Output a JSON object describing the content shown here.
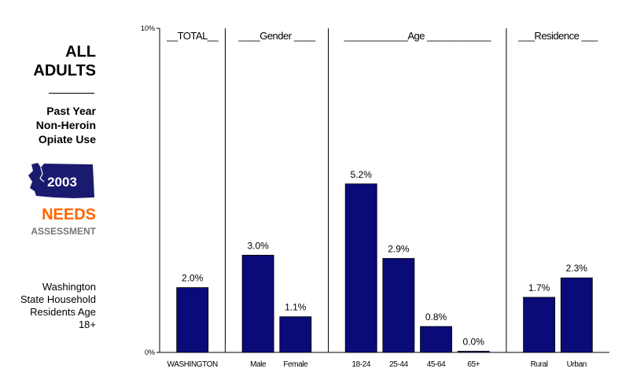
{
  "sidebar": {
    "heading_line1": "ALL",
    "heading_line2": "ADULTS",
    "subtitle_line1": "Past Year",
    "subtitle_line2": "Non-Heroin",
    "subtitle_line3": "Opiate Use",
    "badge_year": "2003",
    "needs": "NEEDS",
    "assessment": "ASSESSMENT",
    "description_line1": "Washington",
    "description_line2": "State Household",
    "description_line3": "Residents Age",
    "description_line4": "18+",
    "map_color": "#1a1a6e",
    "needs_color": "#ff6600",
    "assessment_color": "#777777"
  },
  "chart_data": {
    "type": "bar",
    "ylim": [
      0,
      10
    ],
    "y_ticks": [
      {
        "value": 0,
        "label": "0%"
      },
      {
        "value": 10,
        "label": "10%"
      }
    ],
    "bar_color": "#0a0a78",
    "groups": [
      {
        "header": "__TOTAL__",
        "categories": [
          "WASHINGTON"
        ],
        "values": [
          2.0
        ],
        "labels": [
          "2.0%"
        ]
      },
      {
        "header": "____Gender ____",
        "categories": [
          "Male",
          "Female"
        ],
        "values": [
          3.0,
          1.1
        ],
        "labels": [
          "3.0%",
          "1.1%"
        ]
      },
      {
        "header": "____________Age ____________",
        "categories": [
          "18-24",
          "25-44",
          "45-64",
          "65+"
        ],
        "values": [
          5.2,
          2.9,
          0.8,
          0.0
        ],
        "labels": [
          "5.2%",
          "2.9%",
          "0.8%",
          "0.0%"
        ]
      },
      {
        "header": "___Residence ___",
        "categories": [
          "Rural",
          "Urban"
        ],
        "values": [
          1.7,
          2.3
        ],
        "labels": [
          "1.7%",
          "2.3%"
        ]
      }
    ]
  }
}
